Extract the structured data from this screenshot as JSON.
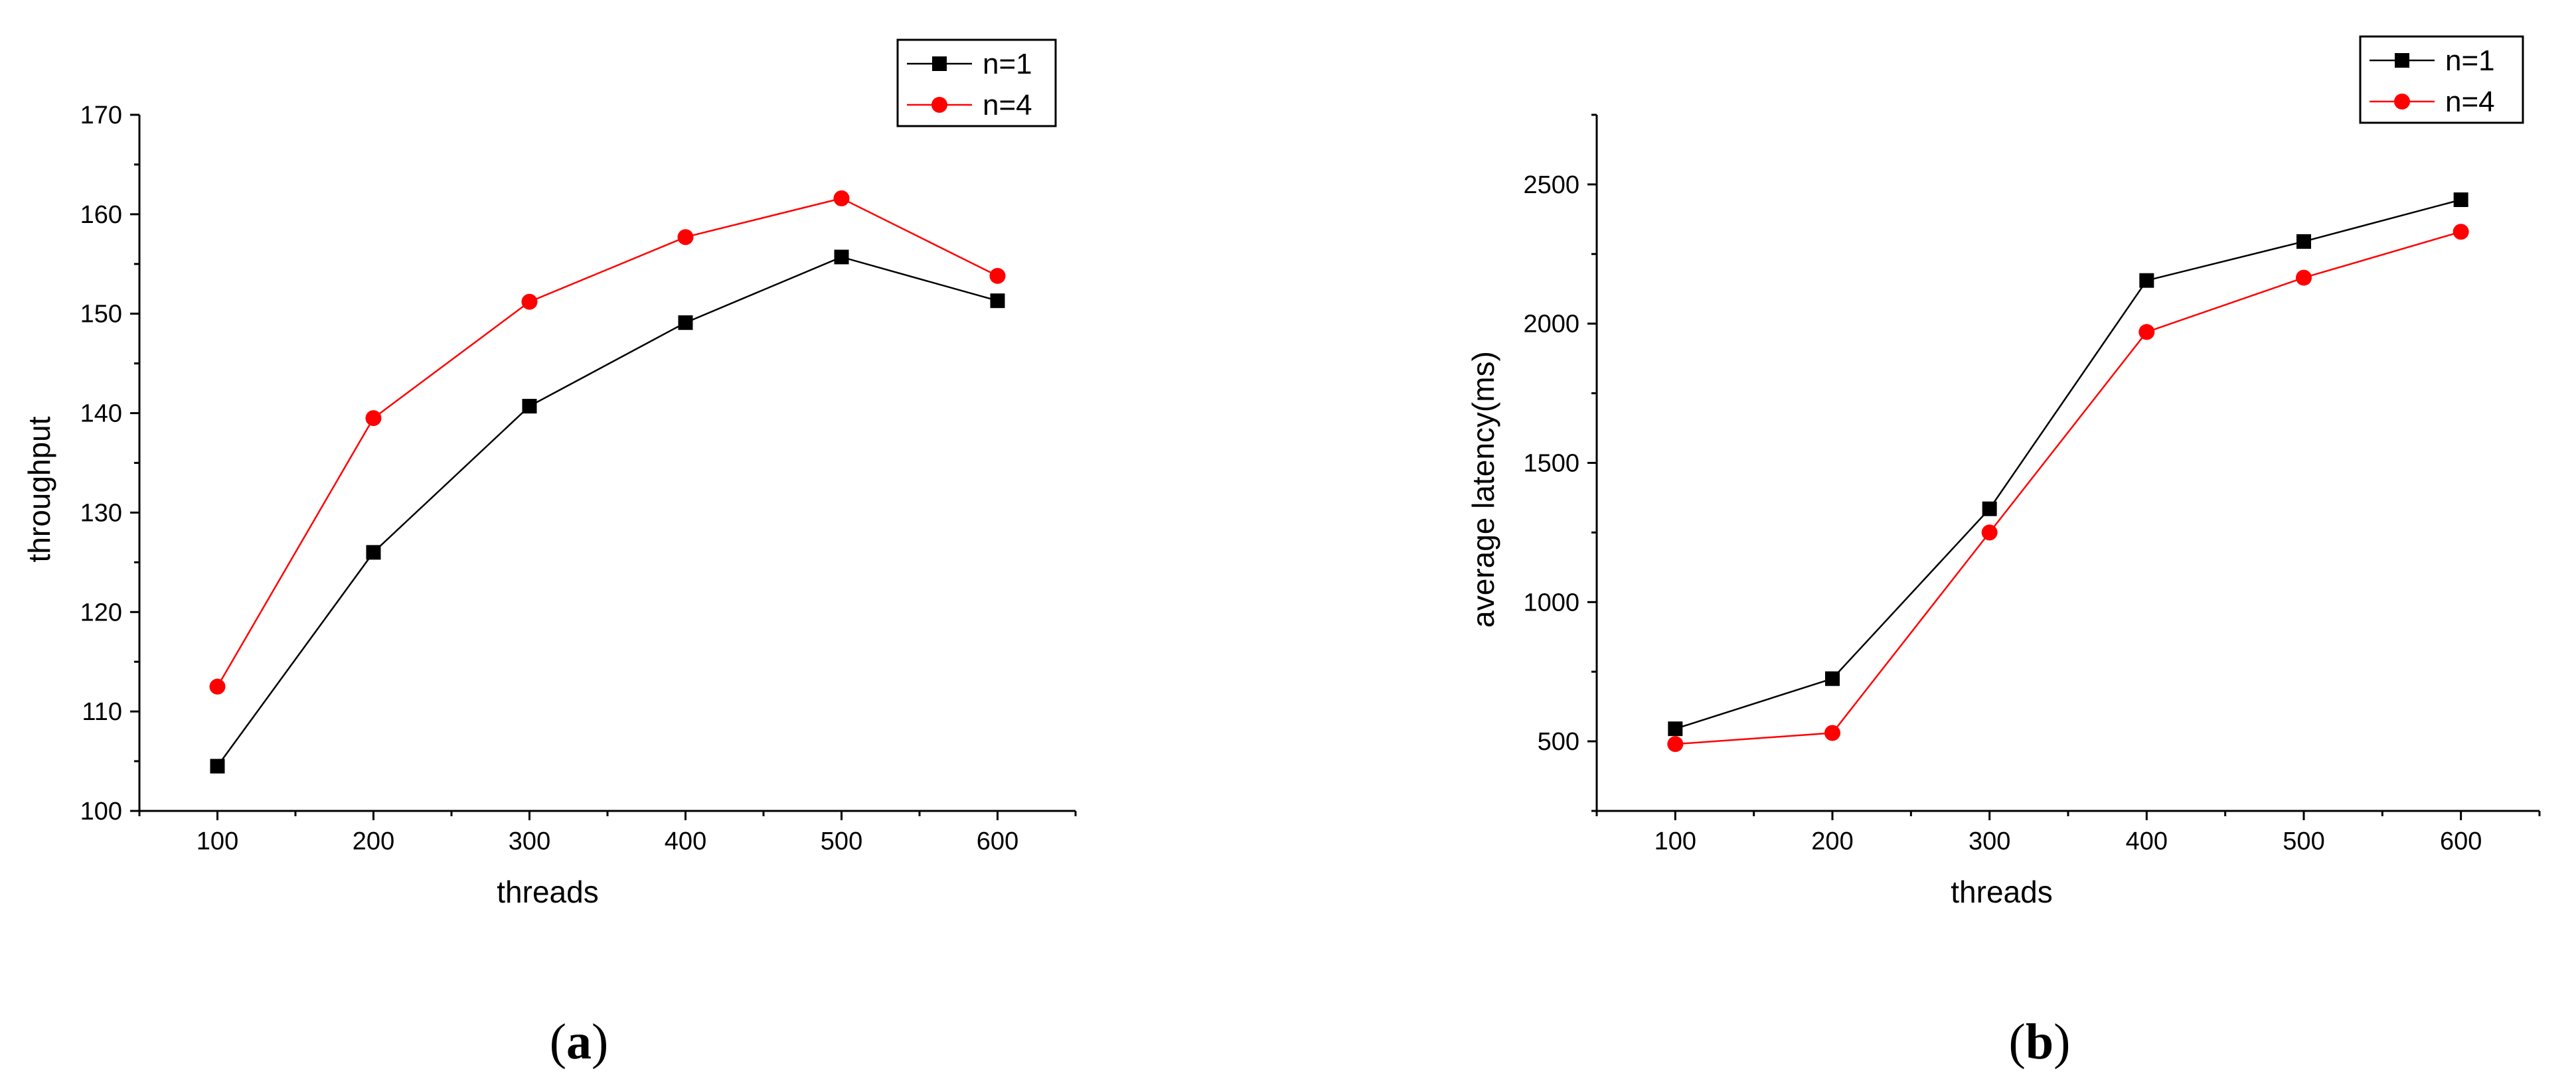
{
  "chart_data": [
    {
      "type": "line",
      "panel_label": "a",
      "xlabel": "threads",
      "ylabel": "throughput",
      "x": [
        100,
        200,
        300,
        400,
        500,
        600
      ],
      "xticks": [
        "100",
        "200",
        "300",
        "400",
        "500",
        "600"
      ],
      "xlim": [
        50,
        650
      ],
      "ylim": [
        100,
        170
      ],
      "yticks": [
        "100",
        "110",
        "120",
        "130",
        "140",
        "150",
        "160",
        "170"
      ],
      "legend_position": "top-right",
      "grid": false,
      "series": [
        {
          "name": "n=1",
          "color": "#000000",
          "marker": "square",
          "values": [
            104.5,
            126.0,
            140.7,
            149.1,
            155.7,
            151.3
          ]
        },
        {
          "name": "n=4",
          "color": "#ff0000",
          "marker": "circle",
          "values": [
            112.5,
            139.5,
            151.2,
            157.7,
            161.6,
            153.8
          ]
        }
      ]
    },
    {
      "type": "line",
      "panel_label": "b",
      "xlabel": "threads",
      "ylabel": "average latency(ms)",
      "x": [
        100,
        200,
        300,
        400,
        500,
        600
      ],
      "xticks": [
        "100",
        "200",
        "300",
        "400",
        "500",
        "600"
      ],
      "xlim": [
        50,
        650
      ],
      "ylim": [
        250,
        2750
      ],
      "yticks": [
        "500",
        "1000",
        "1500",
        "2000",
        "2500"
      ],
      "legend_position": "top-right",
      "grid": false,
      "series": [
        {
          "name": "n=1",
          "color": "#000000",
          "marker": "square",
          "values": [
            545,
            725,
            1335,
            2155,
            2295,
            2445
          ]
        },
        {
          "name": "n=4",
          "color": "#ff0000",
          "marker": "circle",
          "values": [
            490,
            530,
            1250,
            1970,
            2165,
            2330
          ]
        }
      ]
    }
  ]
}
